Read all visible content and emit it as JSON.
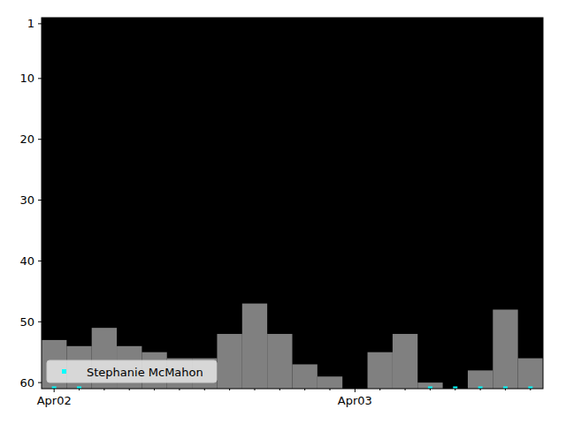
{
  "chart_data": {
    "type": "bar",
    "categories": [
      "Apr02",
      null,
      null,
      null,
      null,
      null,
      null,
      null,
      null,
      null,
      null,
      null,
      "Apr03",
      null,
      null,
      null,
      null,
      null,
      null,
      null
    ],
    "ylim": [
      61,
      0
    ],
    "yticks": [
      1,
      10,
      20,
      30,
      40,
      50,
      60
    ],
    "legend": "lower left",
    "series": [
      {
        "type": "bar",
        "color": "#808080",
        "values": [
          53,
          54,
          51,
          54,
          55,
          56,
          56,
          52,
          47,
          52,
          57,
          59,
          null,
          55,
          52,
          60,
          null,
          58,
          48,
          56
        ]
      },
      {
        "name": "Stephanie McMahon",
        "type": "scatter",
        "color": "#00ffff",
        "marker": "square",
        "values": [
          61,
          61,
          null,
          null,
          null,
          null,
          null,
          null,
          null,
          null,
          null,
          null,
          null,
          null,
          null,
          61,
          61,
          61,
          61,
          61
        ]
      }
    ]
  }
}
